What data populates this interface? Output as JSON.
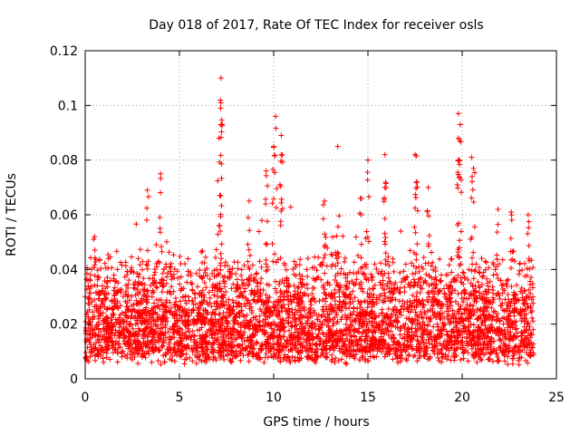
{
  "chart_data": {
    "type": "scatter",
    "title": "Day 018 of 2017, Rate Of TEC Index for receiver osls",
    "xlabel": "GPS time / hours",
    "ylabel": "ROTI / TECUs",
    "xlim": [
      0,
      25
    ],
    "ylim": [
      0,
      0.12
    ],
    "x_ticks": [
      0,
      5,
      10,
      15,
      20,
      25
    ],
    "x_tick_labels": [
      "0",
      "5",
      "10",
      "15",
      "20",
      "25"
    ],
    "y_ticks": [
      0,
      0.02,
      0.04,
      0.06,
      0.08,
      0.1,
      0.12
    ],
    "y_tick_labels": [
      "0",
      "0.02",
      "0.04",
      "0.06",
      "0.08",
      "0.1",
      "0.12"
    ],
    "grid": true,
    "marker": "+",
    "marker_color": "#ff0000",
    "series": [
      {
        "name": "ROTI",
        "x_range": [
          0,
          23.8
        ],
        "base_band": [
          0.005,
          0.04
        ],
        "notable_points": [
          {
            "x": 0.5,
            "y": 0.052
          },
          {
            "x": 3.3,
            "y": 0.069
          },
          {
            "x": 4.0,
            "y": 0.075
          },
          {
            "x": 7.2,
            "y": 0.11
          },
          {
            "x": 7.2,
            "y": 0.101
          },
          {
            "x": 7.2,
            "y": 0.093
          },
          {
            "x": 7.1,
            "y": 0.088
          },
          {
            "x": 8.7,
            "y": 0.065
          },
          {
            "x": 9.6,
            "y": 0.076
          },
          {
            "x": 10.1,
            "y": 0.096
          },
          {
            "x": 10.0,
            "y": 0.085
          },
          {
            "x": 10.4,
            "y": 0.089
          },
          {
            "x": 10.4,
            "y": 0.082
          },
          {
            "x": 12.7,
            "y": 0.065
          },
          {
            "x": 13.4,
            "y": 0.085
          },
          {
            "x": 14.6,
            "y": 0.066
          },
          {
            "x": 15.0,
            "y": 0.08
          },
          {
            "x": 15.9,
            "y": 0.082
          },
          {
            "x": 15.9,
            "y": 0.07
          },
          {
            "x": 17.5,
            "y": 0.082
          },
          {
            "x": 17.6,
            "y": 0.072
          },
          {
            "x": 18.2,
            "y": 0.07
          },
          {
            "x": 19.8,
            "y": 0.097
          },
          {
            "x": 19.9,
            "y": 0.093
          },
          {
            "x": 19.8,
            "y": 0.088
          },
          {
            "x": 19.8,
            "y": 0.08
          },
          {
            "x": 20.5,
            "y": 0.081
          },
          {
            "x": 20.6,
            "y": 0.077
          },
          {
            "x": 21.9,
            "y": 0.062
          },
          {
            "x": 22.6,
            "y": 0.061
          },
          {
            "x": 23.5,
            "y": 0.06
          }
        ]
      }
    ]
  }
}
